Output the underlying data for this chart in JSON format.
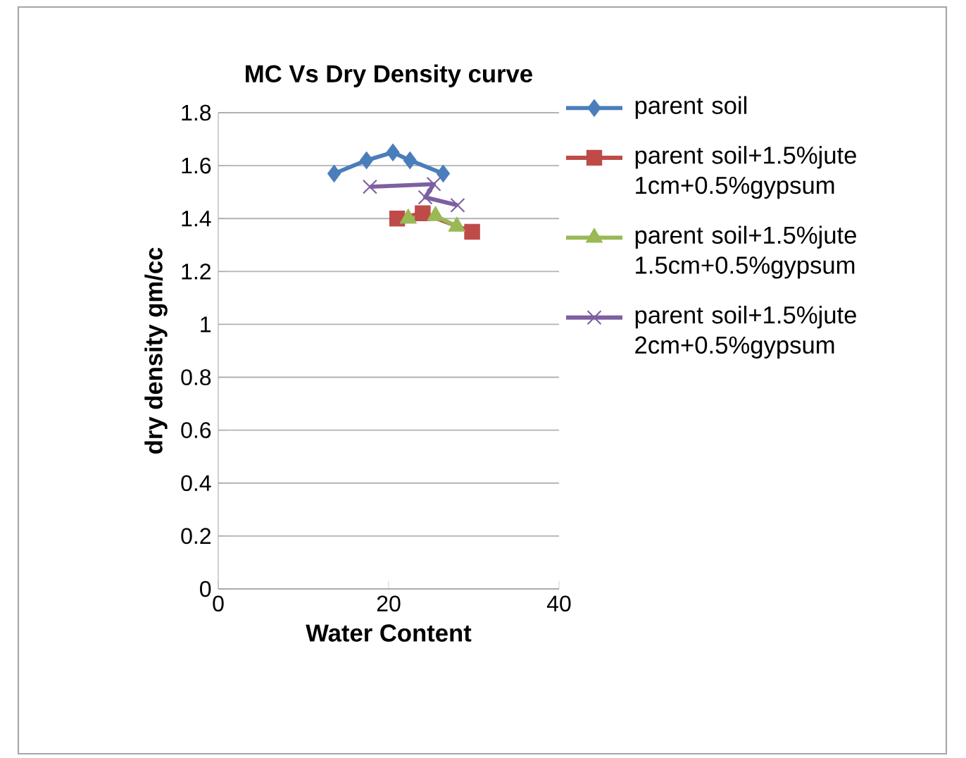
{
  "chart_data": {
    "type": "line",
    "title": "MC Vs Dry Density curve",
    "xlabel": "Water Content",
    "ylabel": "dry density gm/cc",
    "xlim": [
      0,
      40
    ],
    "xticks": [
      0,
      20,
      40
    ],
    "ylim": [
      0,
      1.8
    ],
    "yticks": [
      0,
      0.2,
      0.4,
      0.6,
      0.8,
      1,
      1.2,
      1.4,
      1.6,
      1.8
    ],
    "grid": "y",
    "legend": "right",
    "line_style": "solid",
    "series": [
      {
        "name": "parent soil",
        "color": "#4a7ebb",
        "marker": "diamond",
        "x": [
          13.6,
          17.4,
          20.5,
          22.5,
          26.4
        ],
        "values": [
          1.57,
          1.62,
          1.65,
          1.62,
          1.57
        ]
      },
      {
        "name": "parent soil+1.5%jute 1cm+0.5%gypsum",
        "color": "#be4b48",
        "marker": "square",
        "x": [
          21,
          24,
          29.8
        ],
        "values": [
          1.4,
          1.42,
          1.35
        ]
      },
      {
        "name": "parent soil+1.5%jute 1.5cm+0.5%gypsum",
        "color": "#98b954",
        "marker": "triangle",
        "x": [
          22.3,
          25.5,
          28
        ],
        "values": [
          1.4,
          1.41,
          1.37
        ]
      },
      {
        "name": "parent soil+1.5%jute 2cm+0.5%gypsum",
        "color": "#7d60a0",
        "marker": "cross",
        "x": [
          17.8,
          25.3,
          24.3,
          28.1
        ],
        "values": [
          1.52,
          1.53,
          1.48,
          1.45
        ]
      }
    ]
  }
}
